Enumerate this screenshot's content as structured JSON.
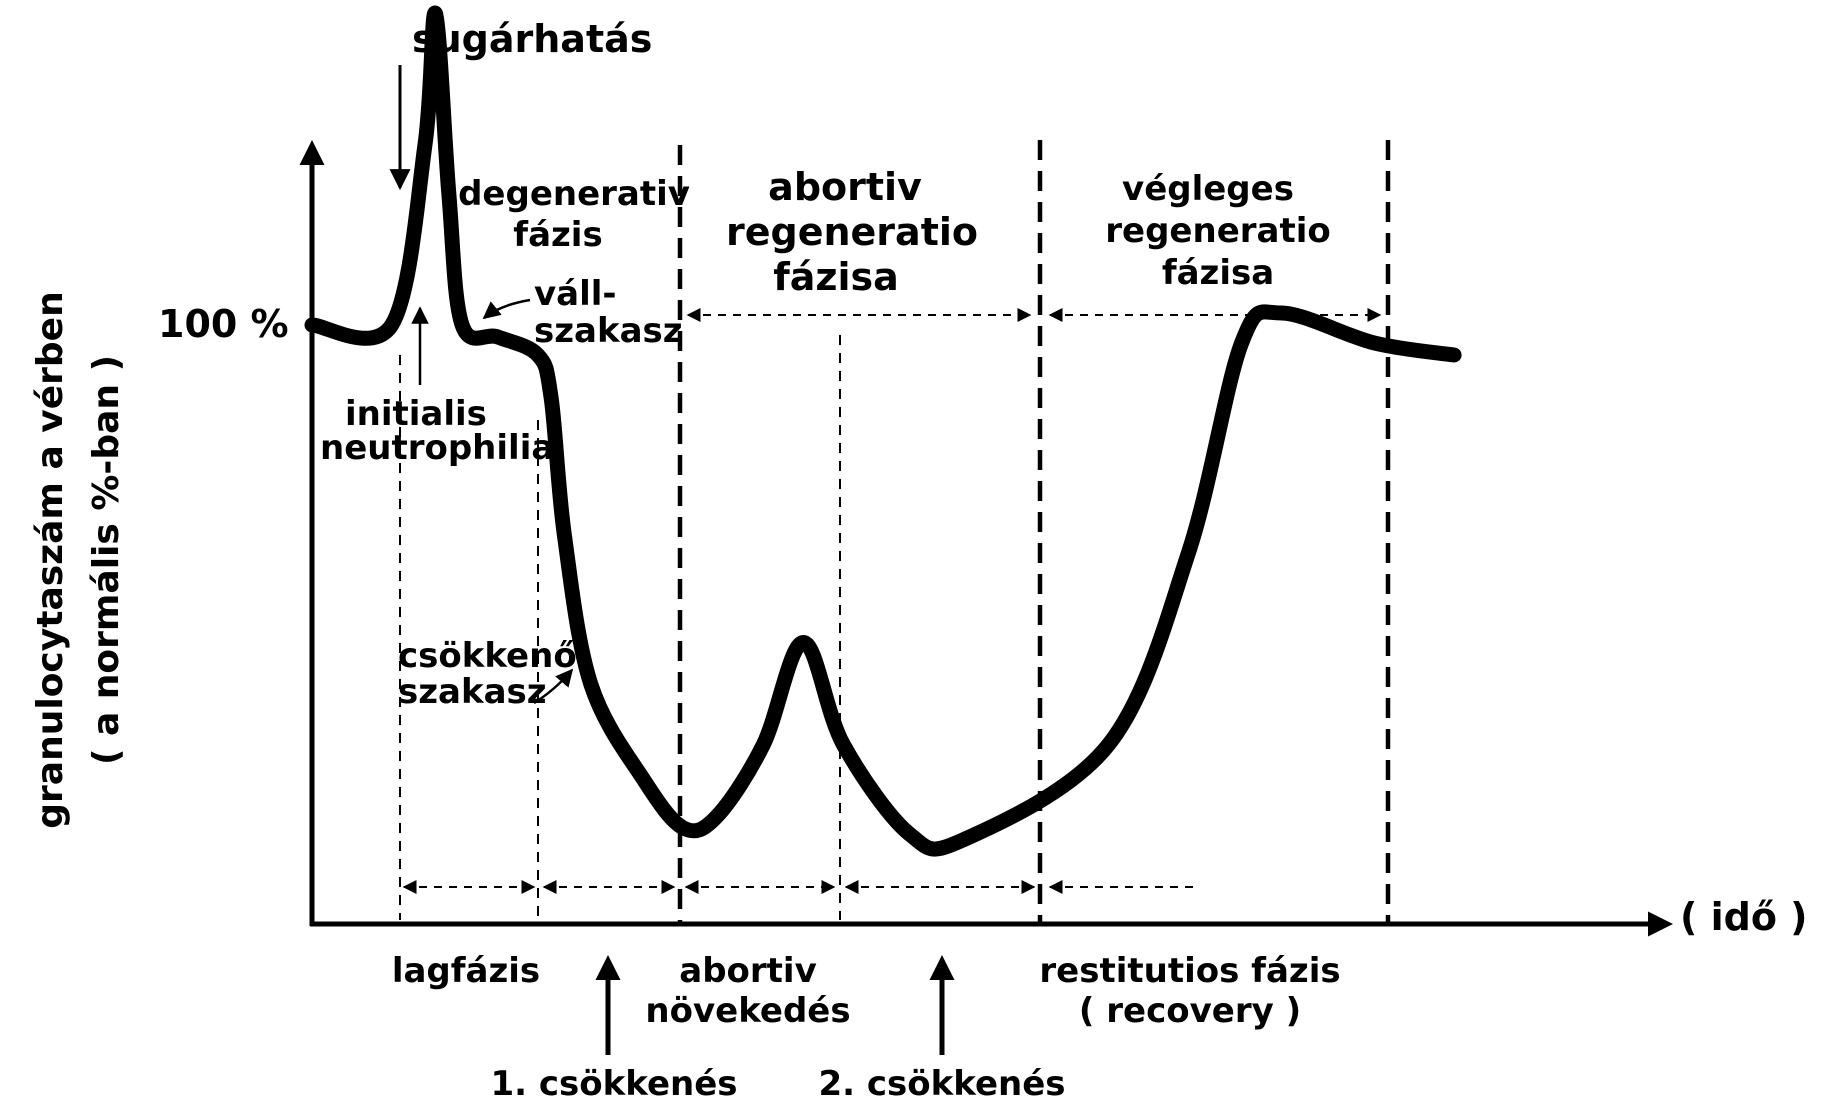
{
  "chart_data": {
    "type": "line",
    "title": "",
    "xlabel": "( idő )",
    "ylabel": [
      "granulocytaszám a vérben",
      "( a normális %-ban )"
    ],
    "y_reference_label": "100 %",
    "grid": false,
    "series": [
      {
        "name": "",
        "points": [
          {
            "t": 0.0,
            "v": 100
          },
          {
            "t": 0.06,
            "v": 100
          },
          {
            "t": 0.085,
            "v": 130
          },
          {
            "t": 0.093,
            "v": 152
          },
          {
            "t": 0.103,
            "v": 122
          },
          {
            "t": 0.113,
            "v": 100
          },
          {
            "t": 0.14,
            "v": 98
          },
          {
            "t": 0.17,
            "v": 95
          },
          {
            "t": 0.18,
            "v": 88
          },
          {
            "t": 0.19,
            "v": 65
          },
          {
            "t": 0.21,
            "v": 40
          },
          {
            "t": 0.25,
            "v": 24
          },
          {
            "t": 0.28,
            "v": 16
          },
          {
            "t": 0.305,
            "v": 18
          },
          {
            "t": 0.34,
            "v": 30
          },
          {
            "t": 0.37,
            "v": 47
          },
          {
            "t": 0.4,
            "v": 30
          },
          {
            "t": 0.45,
            "v": 15
          },
          {
            "t": 0.49,
            "v": 14
          },
          {
            "t": 0.6,
            "v": 30
          },
          {
            "t": 0.66,
            "v": 62
          },
          {
            "t": 0.7,
            "v": 97
          },
          {
            "t": 0.73,
            "v": 102
          },
          {
            "t": 0.8,
            "v": 97
          },
          {
            "t": 0.86,
            "v": 95
          }
        ]
      }
    ],
    "annotations": {
      "sugarhatas": "sugárhatás",
      "degenerativ": [
        "degenerativ",
        "fázis"
      ],
      "abortiv_regen": [
        "abortiv",
        "regeneratio",
        "fázisa"
      ],
      "vegleges_regen": [
        "végleges",
        "regeneratio",
        "fázisa"
      ],
      "vall": [
        "váll-",
        "szakasz"
      ],
      "initialis": [
        "initialis",
        "neutrophilia"
      ],
      "csokkeno": [
        "csökkenő",
        "szakasz"
      ],
      "lagfazis": "lagfázis",
      "abortiv_noveked": [
        "abortiv",
        "növekedés"
      ],
      "restitutios": [
        "restitutios fázis",
        "( recovery )"
      ],
      "csokkenes1": "1. csökkenés",
      "csokkenes2": "2. csökkenés"
    }
  }
}
